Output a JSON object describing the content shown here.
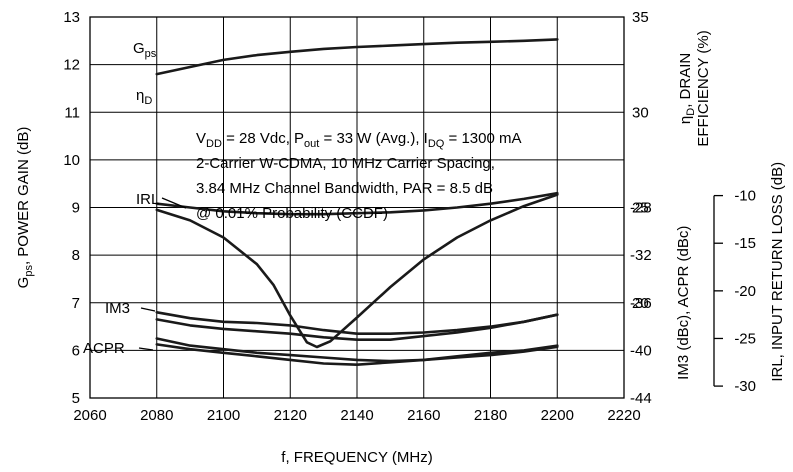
{
  "chart_data": {
    "type": "line",
    "xlabel": "f, FREQUENCY (MHz)",
    "x_ticks": [
      "2060",
      "2080",
      "2100",
      "2120",
      "2140",
      "2160",
      "2180",
      "2200",
      "2220"
    ],
    "xlim": [
      2060,
      2220
    ],
    "grid": true,
    "left_axis": {
      "label_parts": [
        "G",
        "ps",
        ",  POWER GAIN (dB)"
      ],
      "ylim": [
        5,
        13
      ],
      "ticks": [
        "5",
        "6",
        "7",
        "8",
        "9",
        "10",
        "11",
        "12",
        "13"
      ]
    },
    "right_axis_1": {
      "upper_label": {
        "line1_parts": [
          "η",
          "D",
          ", DRAIN"
        ],
        "line2": "EFFICIENCY (%)"
      },
      "upper_ticks": [
        "35",
        "30",
        "25",
        "20"
      ],
      "upper_ylim": [
        15,
        35
      ],
      "lower_label_parts": [
        "IM3 (dBc),  ACPR (dBc)"
      ],
      "lower_ticks": [
        "-28",
        "-32",
        "-36",
        "-40",
        "-44"
      ],
      "lower_ylim": [
        -44,
        -28
      ]
    },
    "right_axis_2": {
      "label": "IRL,  INPUT RETURN LOSS (dB)",
      "ticks": [
        "-10",
        "-15",
        "-20",
        "-25",
        "-30"
      ],
      "ylim": [
        -30,
        -10
      ]
    },
    "annotation_lines": [
      [
        "V",
        "DD",
        " = 28 Vdc, P",
        "out",
        " = 33 W (Avg.), I",
        "DQ",
        " = 1300 mA"
      ],
      [
        "2-Carrier W-CDMA, 10 MHz Carrier Spacing,"
      ],
      [
        "3.84 MHz Channel Bandwidth, PAR = 8.5 dB"
      ],
      [
        "@ 0.01% Probability (CCDF)"
      ]
    ],
    "series": [
      {
        "name": "Gps",
        "label_parts": [
          "G",
          "ps"
        ],
        "axis": "left",
        "x": [
          2080,
          2090,
          2100,
          2110,
          2120,
          2130,
          2140,
          2150,
          2160,
          2170,
          2180,
          2190,
          2200
        ],
        "y": [
          11.8,
          11.95,
          12.1,
          12.2,
          12.27,
          12.33,
          12.37,
          12.4,
          12.43,
          12.46,
          12.48,
          12.5,
          12.53
        ]
      },
      {
        "name": "ηD",
        "label_parts": [
          "η",
          "D"
        ],
        "axis": "efficiency",
        "x": [
          2080,
          2090,
          2100,
          2110,
          2120,
          2130,
          2140,
          2150,
          2160,
          2170,
          2180,
          2190,
          2200
        ],
        "y": [
          25.2,
          25.0,
          24.8,
          24.7,
          24.65,
          24.65,
          24.7,
          24.75,
          24.85,
          25.0,
          25.2,
          25.45,
          25.75
        ]
      },
      {
        "name": "IRL",
        "label_parts": [
          "IRL"
        ],
        "axis": "irl",
        "x": [
          2080,
          2090,
          2100,
          2110,
          2115,
          2120,
          2125,
          2128,
          2132,
          2140,
          2150,
          2160,
          2170,
          2180,
          2190,
          2200
        ],
        "y": [
          -11.5,
          -12.6,
          -14.4,
          -17.2,
          -19.4,
          -22.6,
          -25.4,
          -25.9,
          -25.3,
          -22.8,
          -19.6,
          -16.7,
          -14.4,
          -12.6,
          -11.1,
          -9.9
        ]
      },
      {
        "name": "IM3 upper",
        "label_parts": [
          "IM3"
        ],
        "axis": "dbc",
        "x": [
          2080,
          2090,
          2100,
          2110,
          2120,
          2130,
          2140,
          2150,
          2160,
          2170,
          2180,
          2190,
          2200
        ],
        "y": [
          -36.8,
          -37.3,
          -37.6,
          -37.7,
          -37.9,
          -38.3,
          -38.6,
          -38.6,
          -38.5,
          -38.3,
          -38.0,
          -37.6,
          -37.0
        ]
      },
      {
        "name": "IM3 lower",
        "label_parts": [],
        "axis": "dbc",
        "x": [
          2080,
          2090,
          2100,
          2110,
          2120,
          2130,
          2140,
          2150,
          2160,
          2170,
          2180,
          2190,
          2200
        ],
        "y": [
          -37.4,
          -37.9,
          -38.2,
          -38.4,
          -38.6,
          -38.9,
          -39.1,
          -39.1,
          -38.8,
          -38.5,
          -38.1,
          -37.6,
          -37.0
        ]
      },
      {
        "name": "ACPR upper",
        "label_parts": [
          "ACPR"
        ],
        "axis": "dbc",
        "x": [
          2080,
          2090,
          2100,
          2110,
          2120,
          2130,
          2140,
          2150,
          2160,
          2170,
          2180,
          2190,
          2200
        ],
        "y": [
          -39.0,
          -39.6,
          -39.9,
          -40.2,
          -40.4,
          -40.6,
          -40.8,
          -40.9,
          -40.8,
          -40.5,
          -40.2,
          -40.0,
          -39.6
        ]
      },
      {
        "name": "ACPR lower",
        "label_parts": [],
        "axis": "dbc",
        "x": [
          2080,
          2090,
          2100,
          2110,
          2120,
          2130,
          2140,
          2150,
          2160,
          2170,
          2180,
          2190,
          2200
        ],
        "y": [
          -39.5,
          -39.9,
          -40.2,
          -40.5,
          -40.8,
          -41.1,
          -41.2,
          -41.0,
          -40.8,
          -40.6,
          -40.4,
          -40.1,
          -39.7
        ]
      }
    ]
  }
}
